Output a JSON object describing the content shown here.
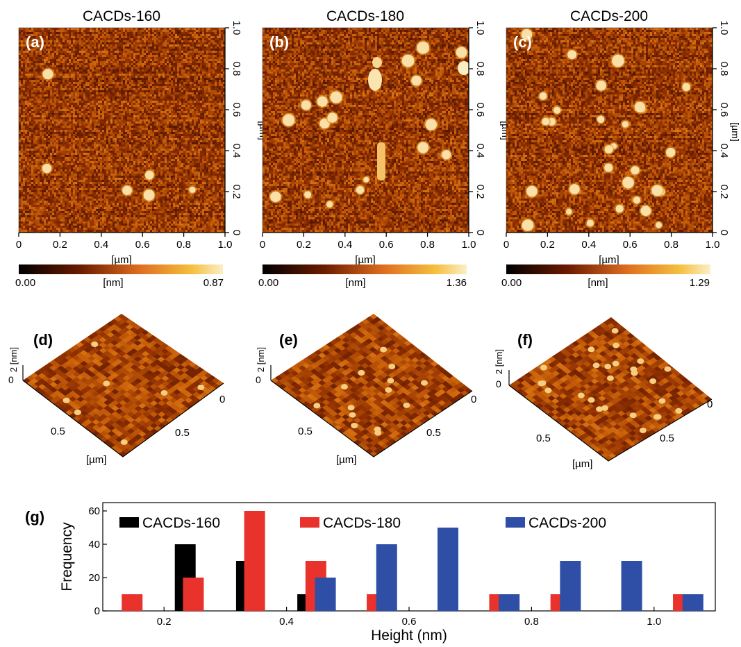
{
  "panels": [
    {
      "letter": "(a)",
      "title": "CACDs-160",
      "x_axis_label": "[µm]",
      "y_axis_label": "[µm]",
      "ticks": [
        "0",
        "0.2",
        "0.4",
        "0.6",
        "0.8",
        "1.0"
      ],
      "colorbar": {
        "min": "0.00",
        "unit": "[nm]",
        "max": "0.87"
      },
      "height_range_nm": [
        0,
        0.87
      ],
      "particle_density": "low"
    },
    {
      "letter": "(b)",
      "title": "CACDs-180",
      "x_axis_label": "[µm]",
      "y_axis_label": "[µm]",
      "ticks": [
        "0",
        "0.2",
        "0.4",
        "0.6",
        "0.8",
        "1.0"
      ],
      "colorbar": {
        "min": "0.00",
        "unit": "[nm]",
        "max": "1.36"
      },
      "height_range_nm": [
        0,
        1.36
      ],
      "particle_density": "medium"
    },
    {
      "letter": "(c)",
      "title": "CACDs-200",
      "x_axis_label": "[µm]",
      "y_axis_label": "[µm]",
      "ticks": [
        "0",
        "0.2",
        "0.4",
        "0.6",
        "0.8",
        "1.0"
      ],
      "colorbar": {
        "min": "0.00",
        "unit": "[nm]",
        "max": "1.29"
      },
      "height_range_nm": [
        0,
        1.29
      ],
      "particle_density": "high"
    }
  ],
  "surfaces": [
    {
      "letter": "(d)",
      "z_label": "2 [nm]",
      "z_zero": "0",
      "tick_right": "0",
      "tick_mid_left": "0.5",
      "tick_mid_right": "0.5",
      "axis_label": "[µm]"
    },
    {
      "letter": "(e)",
      "z_label": "2 [nm]",
      "z_zero": "0",
      "tick_right": "0",
      "tick_mid_left": "0.5",
      "tick_mid_right": "0.5",
      "axis_label": "[µm]"
    },
    {
      "letter": "(f)",
      "z_label": "2 [nm]",
      "z_zero": "0",
      "tick_right": "0",
      "tick_mid_left": "0.5",
      "tick_mid_right": "0.5",
      "axis_label": "[µm]"
    }
  ],
  "colors": {
    "afm_dark": "#3a0a00",
    "afm_mid": "#c8620a",
    "afm_light": "#f3b340",
    "afm_bright": "#fbeec0",
    "series_160": "#000000",
    "series_180": "#e8322b",
    "series_200": "#2f4ea5"
  },
  "chart_data": {
    "type": "bar",
    "panel_letter": "(g)",
    "xlabel": "Height (nm)",
    "ylabel": "Frequency",
    "xlim": [
      0.1,
      1.1
    ],
    "ylim": [
      0,
      65
    ],
    "xticks": [
      "0.2",
      "0.4",
      "0.6",
      "0.8",
      "1.0"
    ],
    "yticks": [
      "0",
      "20",
      "40",
      "60"
    ],
    "bin_centers": [
      0.15,
      0.25,
      0.35,
      0.45,
      0.55,
      0.65,
      0.75,
      0.85,
      0.95,
      1.05
    ],
    "series": [
      {
        "name": "CACDs-160",
        "color": "#000000",
        "values": [
          0,
          40,
          30,
          10,
          0,
          0,
          0,
          0,
          0,
          0
        ]
      },
      {
        "name": "CACDs-180",
        "color": "#e8322b",
        "values": [
          10,
          20,
          60,
          30,
          10,
          0,
          10,
          10,
          0,
          10
        ]
      },
      {
        "name": "CACDs-200",
        "color": "#2f4ea5",
        "values": [
          0,
          0,
          0,
          20,
          40,
          50,
          10,
          30,
          30,
          10
        ]
      }
    ],
    "legend_placement": "top"
  }
}
